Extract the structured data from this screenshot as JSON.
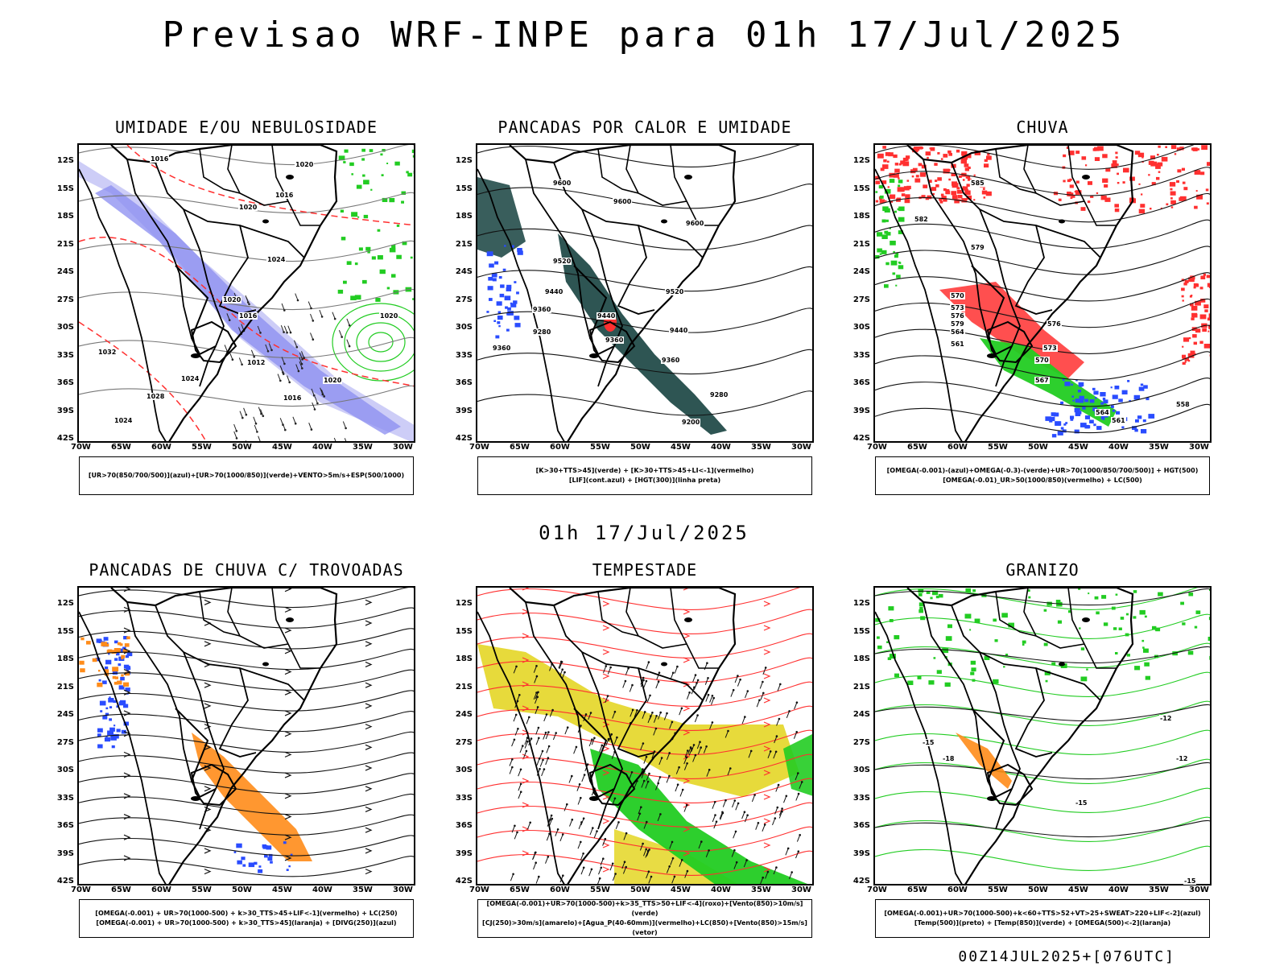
{
  "title": "Previsao WRF-INPE  para 01h 17/Jul/2025",
  "mid_title": "01h 17/Jul/2025",
  "footer": "00Z14JUL2025+[076UTC]",
  "lat_labels": [
    "12S",
    "15S",
    "18S",
    "21S",
    "24S",
    "27S",
    "30S",
    "33S",
    "36S",
    "39S",
    "42S"
  ],
  "lon_labels": [
    "70W",
    "65W",
    "60W",
    "55W",
    "50W",
    "45W",
    "40W",
    "35W",
    "30W"
  ],
  "panels": [
    {
      "title": "UMIDADE E/OU NEBULOSIDADE",
      "legend": [
        "[UR>70(850/700/500)](azul)+[UR>70(1000/850)](verde)+VENTO>5m/s+ESP(500/1000)"
      ]
    },
    {
      "title": "PANCADAS POR CALOR E UMIDADE",
      "legend": [
        "[K>30+TTS>45](verde) + [K>30+TTS>45+LI<-1](vermelho)",
        "[LIF](cont.azul) + [HGT(300)](linha preta)"
      ]
    },
    {
      "title": "CHUVA",
      "legend": [
        "[OMEGA(-0.001)-(azul)+OMEGA(-0.3)-(verde)+UR>70(1000/850/700/500)] + HGT(500)",
        "[OMEGA(-0.01)_UR>50(1000/850)(vermelho) + LC(500)"
      ]
    },
    {
      "title": "PANCADAS DE CHUVA C/ TROVOADAS",
      "legend": [
        "[OMEGA(-0.001) + UR>70(1000-500) + k>30_TTS>45+LIF<-1](vermelho) + LC(250)",
        "[OMEGA(-0.001) + UR>70(1000-500) + k>30_TTS>45](laranja) + [DIVG(250)](azul)"
      ]
    },
    {
      "title": "TEMPESTADE",
      "legend": [
        "[OMEGA(-0.001)+UR>70(1000-500)+k>35_TTS>50+LIF<-4](roxo)+[Vento(850)>10m/s](verde)",
        "[CJ(250)>30m/s](amarelo)+[Agua_P(40-60mm)](vermelho)+LC(850)+[Vento(850)>15m/s](vetor)"
      ]
    },
    {
      "title": "GRANIZO",
      "legend": [
        "[OMEGA(-0.001)+UR>70(1000-500)+k<60+TTS>52+VT>25+SWEAT>220+LIF<-2](azul)",
        "[Temp(500)](preto) + [Temp(850)](verde) + [OMEGA(500)<-2](laranja)"
      ]
    }
  ],
  "contour_labels": {
    "p1": [
      "1016",
      "1020",
      "1016",
      "1020",
      "1024",
      "1020",
      "1016",
      "1012",
      "1016",
      "1020",
      "1024",
      "1028",
      "1024",
      "1032",
      "1020"
    ],
    "p2": [
      "9600",
      "9600",
      "9600",
      "9520",
      "9440",
      "9360",
      "9280",
      "9520",
      "9440",
      "9360",
      "9280",
      "9200",
      "9440",
      "9360",
      "9360"
    ],
    "p3": [
      "585",
      "582",
      "579",
      "576",
      "573",
      "570",
      "567",
      "564",
      "561",
      "558",
      "570",
      "573",
      "576",
      "579",
      "564",
      "561"
    ],
    "p6": [
      "-12",
      "-15",
      "-18",
      "-15",
      "-12",
      "-15"
    ]
  },
  "colors": {
    "blue": "#2a4cff",
    "green": "#22cc22",
    "red": "#ff3030",
    "orange": "#ff8c1a",
    "yellow": "#e6d830",
    "dark_teal": "#234c4a",
    "purple_fill": "#8a8cf0",
    "lavender": "#b8b8f4"
  }
}
